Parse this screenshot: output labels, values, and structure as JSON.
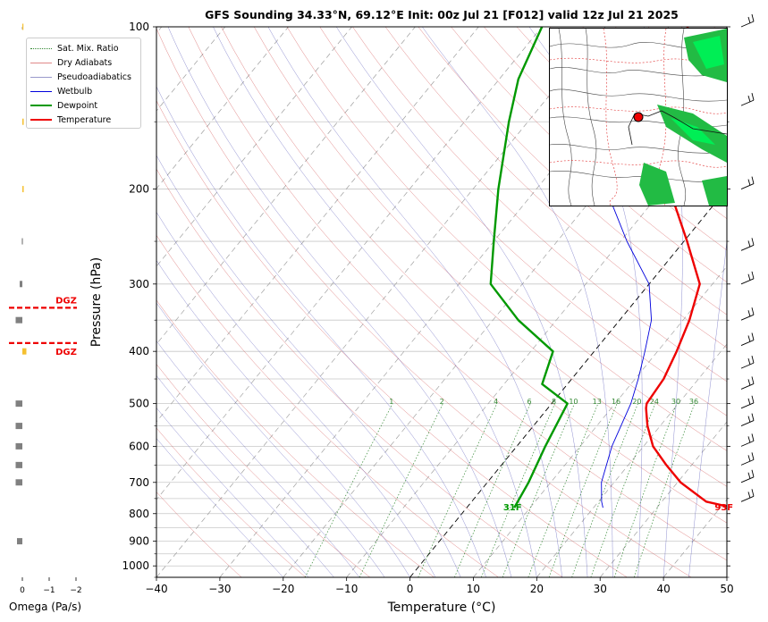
{
  "title": "GFS Sounding 34.33°N, 69.12°E Init: 00z Jul 21 [F012] valid 12z Jul 21 2025",
  "colors": {
    "temperature": "#ee0000",
    "dewpoint": "#009900",
    "wetbulb": "#0000dd",
    "dry_adiabat": "#cc3333",
    "moist_adiabat": "#3333aa",
    "mixing_ratio": "#338833",
    "dgz": "#ee0000",
    "omega_gray": "#808080",
    "omega_yellow": "#f5c030"
  },
  "legend": {
    "items": [
      {
        "label": "Sat. Mix. Ratio",
        "style": "dotted",
        "color": "#338833"
      },
      {
        "label": "Dry Adiabats",
        "style": "solid-thin",
        "color": "#cc3333"
      },
      {
        "label": "Pseudoadiabatics",
        "style": "solid-thin",
        "color": "#3333aa"
      },
      {
        "label": "Wetbulb",
        "style": "solid",
        "color": "#0000dd"
      },
      {
        "label": "Dewpoint",
        "style": "thick",
        "color": "#009900"
      },
      {
        "label": "Temperature",
        "style": "thick",
        "color": "#ee0000"
      }
    ]
  },
  "surface_labels": {
    "temperature": "93F",
    "dewpoint": "31F"
  },
  "dgz_label": "DGZ",
  "omega_axis": {
    "label": "Omega (Pa/s)",
    "ticks": [
      "0",
      "−1",
      "−2"
    ]
  },
  "chart_data": {
    "type": "line",
    "kind": "skew-t log-p sounding",
    "xlabel": "Temperature (°C)",
    "ylabel": "Pressure (hPa)",
    "x_range": [
      -40,
      50
    ],
    "y_range_hpa": [
      1050,
      100
    ],
    "y_scale": "log",
    "x_ticks": [
      "−40",
      "−30",
      "−20",
      "−10",
      "0",
      "10",
      "20",
      "30",
      "40",
      "50"
    ],
    "y_ticks": [
      "100",
      "200",
      "300",
      "400",
      "500",
      "600",
      "700",
      "800",
      "900",
      "1000"
    ],
    "grid": true,
    "legend_placement": "top-left",
    "mixing_ratio_labels": [
      "1",
      "2",
      "4",
      "6",
      "8",
      "10",
      "13",
      "16",
      "20",
      "24",
      "30",
      "36"
    ],
    "series": [
      {
        "name": "Temperature",
        "points": [
          [
            780,
            42.0
          ],
          [
            760,
            37.0
          ],
          [
            700,
            30.5
          ],
          [
            650,
            26.0
          ],
          [
            600,
            21.5
          ],
          [
            550,
            18.0
          ],
          [
            510,
            15.5
          ],
          [
            500,
            15.0
          ],
          [
            450,
            14.5
          ],
          [
            400,
            13.0
          ],
          [
            350,
            11.0
          ],
          [
            300,
            8.0
          ],
          [
            250,
            0.5
          ],
          [
            200,
            -9.0
          ],
          [
            150,
            -18.0
          ],
          [
            120,
            -23.0
          ],
          [
            100,
            -27.0
          ]
        ]
      },
      {
        "name": "Dewpoint",
        "points": [
          [
            780,
            7.5
          ],
          [
            700,
            6.5
          ],
          [
            600,
            4.5
          ],
          [
            500,
            2.5
          ],
          [
            460,
            -4.0
          ],
          [
            400,
            -6.5
          ],
          [
            350,
            -16.0
          ],
          [
            300,
            -25.0
          ],
          [
            250,
            -30.0
          ],
          [
            200,
            -36.0
          ],
          [
            150,
            -43.0
          ],
          [
            125,
            -47.0
          ],
          [
            100,
            -50.0
          ]
        ]
      },
      {
        "name": "Wetbulb",
        "points": [
          [
            780,
            21.5
          ],
          [
            760,
            20.5
          ],
          [
            700,
            18.0
          ],
          [
            600,
            15.0
          ],
          [
            500,
            12.5
          ],
          [
            450,
            10.5
          ],
          [
            400,
            8.0
          ],
          [
            350,
            5.0
          ],
          [
            300,
            0.0
          ],
          [
            250,
            -9.0
          ],
          [
            200,
            -19.0
          ],
          [
            150,
            -32.0
          ]
        ]
      }
    ],
    "omega_profile": [
      {
        "p": 900,
        "omega": 0.2
      },
      {
        "p": 700,
        "omega": 0.25
      },
      {
        "p": 650,
        "omega": 0.25
      },
      {
        "p": 600,
        "omega": 0.25
      },
      {
        "p": 550,
        "omega": 0.25
      },
      {
        "p": 500,
        "omega": 0.25
      },
      {
        "p": 400,
        "omega": -0.15
      },
      {
        "p": 350,
        "omega": 0.25
      },
      {
        "p": 300,
        "omega": 0.1
      },
      {
        "p": 250,
        "omega": 0.02
      },
      {
        "p": 200,
        "omega": -0.05
      },
      {
        "p": 150,
        "omega": -0.05
      },
      {
        "p": 100,
        "omega": -0.03
      }
    ],
    "dgz_pressures_hpa": [
      332,
      386
    ]
  }
}
